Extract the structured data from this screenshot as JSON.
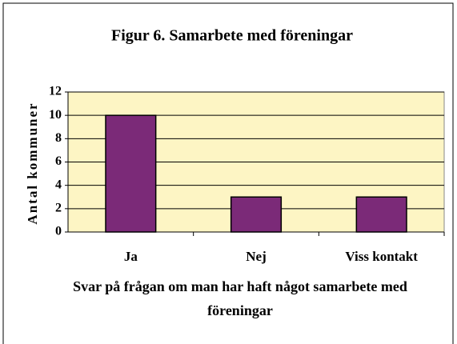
{
  "chart_data": {
    "type": "bar",
    "title": "Figur 6. Samarbete med föreningar",
    "categories": [
      "Ja",
      "Nej",
      "Viss kontakt"
    ],
    "values": [
      10,
      3,
      3
    ],
    "color": "#7b2a78",
    "ylim": [
      0,
      12
    ],
    "yticks": [
      0,
      2,
      4,
      6,
      8,
      10,
      12
    ],
    "grid": true,
    "y_label": "Antal kommuner",
    "x_label": "Svar på frågan om man har haft något samarbete med föreningar"
  }
}
